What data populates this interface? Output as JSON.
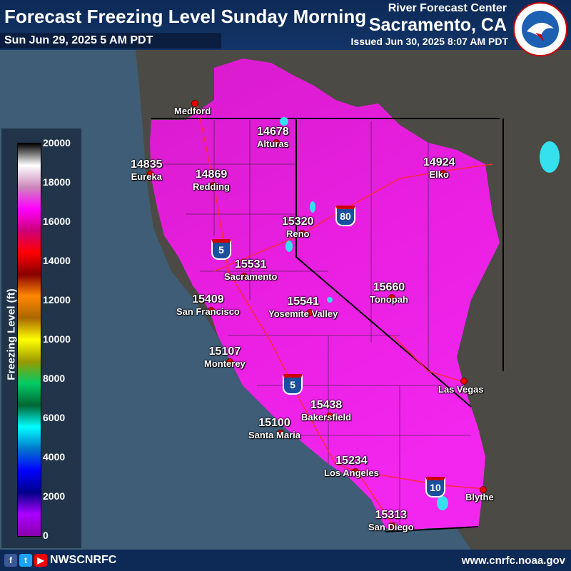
{
  "header": {
    "title": "Forecast Freezing Level Sunday Morning",
    "valid": "Sun Jun 29, 2025 5 AM PDT",
    "center_line1": "River Forecast Center",
    "center_line2": "Sacramento, CA",
    "issued": "Issued Jun 30, 2025 8:07 AM PDT",
    "logo_text": "NATIONAL WEATHER SERVICE"
  },
  "legend": {
    "title": "Freezing Level (ft)",
    "ticks": [
      "20000",
      "18000",
      "16000",
      "14000",
      "12000",
      "10000",
      "8000",
      "6000",
      "4000",
      "2000",
      "0"
    ],
    "colors": [
      "#000000",
      "#ffffff",
      "#cc88bb",
      "#ff00ff",
      "#cc0077",
      "#ff0000",
      "#880000",
      "#ff8800",
      "#aa6600",
      "#ffff00",
      "#999900",
      "#00cc66",
      "#006633",
      "#00ffff",
      "#0077cc",
      "#0000ff",
      "#000088",
      "#aa00ff",
      "#8800aa"
    ]
  },
  "highways": [
    "80",
    "5",
    "5",
    "10"
  ],
  "cities": [
    {
      "name": "Medford",
      "value": ""
    },
    {
      "name": "Alturas",
      "value": "14678"
    },
    {
      "name": "Eureka",
      "value": "14835"
    },
    {
      "name": "Redding",
      "value": "14869"
    },
    {
      "name": "Elko",
      "value": "14924"
    },
    {
      "name": "Reno",
      "value": "15320"
    },
    {
      "name": "Sacramento",
      "value": "15531"
    },
    {
      "name": "San Francisco",
      "value": "15409"
    },
    {
      "name": "Yosemite Valley",
      "value": "15541"
    },
    {
      "name": "Tonopah",
      "value": "15660"
    },
    {
      "name": "Monterey",
      "value": "15107"
    },
    {
      "name": "Las Vegas",
      "value": ""
    },
    {
      "name": "Bakersfield",
      "value": "15438"
    },
    {
      "name": "Santa Maria",
      "value": "15100"
    },
    {
      "name": "Los Angeles",
      "value": "15234"
    },
    {
      "name": "Blythe",
      "value": ""
    },
    {
      "name": "San Diego",
      "value": "15313"
    }
  ],
  "footer": {
    "social_icons": [
      "facebook-icon",
      "twitter-icon",
      "youtube-icon"
    ],
    "handle": "NWSCNRFC",
    "website": "www.cnrfc.noaa.gov"
  }
}
